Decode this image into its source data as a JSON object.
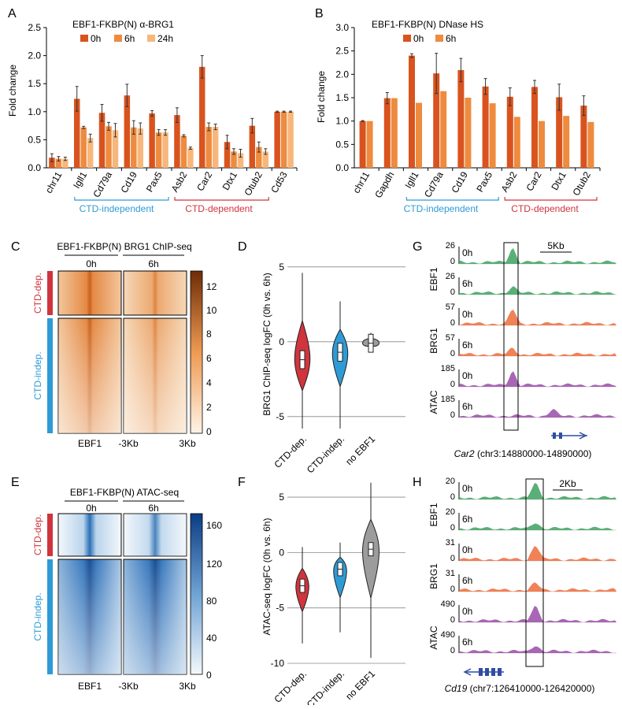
{
  "panels": {
    "A": {
      "letter": "A",
      "title": "EBF1-FKBP(N) α-BRG1",
      "ylabel": "Fold change",
      "legend": [
        "0h",
        "6h",
        "24h"
      ],
      "groups": [
        "CTD-independent",
        "CTD-dependent"
      ]
    },
    "B": {
      "letter": "B",
      "title": "EBF1-FKBP(N) DNase HS",
      "ylabel": "Fold change",
      "legend": [
        "0h",
        "6h"
      ],
      "groups": [
        "CTD-independent",
        "CTD-dependent"
      ]
    },
    "C": {
      "letter": "C",
      "title": "EBF1-FKBP(N) BRG1 ChIP-seq",
      "cols": [
        "0h",
        "6h"
      ],
      "rows": [
        "CTD-dep.",
        "CTD-indep."
      ],
      "xlabels": [
        "EBF1",
        "-3Kb",
        "3Kb"
      ],
      "scale": [
        "12",
        "10",
        "8",
        "6",
        "4",
        "2",
        "0"
      ]
    },
    "D": {
      "letter": "D",
      "ylabel": "BRG1 ChIP-seq logFC (0h vs. 6h)"
    },
    "E": {
      "letter": "E",
      "title": "EBF1-FKBP(N) ATAC-seq",
      "cols": [
        "0h",
        "6h"
      ],
      "rows": [
        "CTD-dep.",
        "CTD-indep."
      ],
      "xlabels": [
        "EBF1",
        "-3Kb",
        "3Kb"
      ],
      "scale": [
        "160",
        "120",
        "80",
        "40",
        "0"
      ]
    },
    "F": {
      "letter": "F",
      "ylabel": "ATAC-seq logFC (0h vs. 6h)"
    },
    "G": {
      "letter": "G",
      "scalebar": "5Kb",
      "gene": "Car2",
      "coords": "(chr3:14880000-14890000)",
      "tracks": [
        {
          "factor": "EBF1",
          "max": "26",
          "time": "0h"
        },
        {
          "factor": "",
          "max": "26",
          "time": "6h"
        },
        {
          "factor": "BRG1",
          "max": "57",
          "time": "0h"
        },
        {
          "factor": "",
          "max": "57",
          "time": "6h"
        },
        {
          "factor": "ATAC",
          "max": "185",
          "time": "0h"
        },
        {
          "factor": "",
          "max": "185",
          "time": "6h"
        }
      ]
    },
    "H": {
      "letter": "H",
      "scalebar": "2Kb",
      "gene": "Cd19",
      "coords": "(chr7:126410000-126420000)",
      "tracks": [
        {
          "factor": "EBF1",
          "max": "20",
          "time": "0h"
        },
        {
          "factor": "",
          "max": "20",
          "time": "6h"
        },
        {
          "factor": "BRG1",
          "max": "31",
          "time": "0h"
        },
        {
          "factor": "",
          "max": "31",
          "time": "6h"
        },
        {
          "factor": "ATAC",
          "max": "490",
          "time": "0h"
        },
        {
          "factor": "",
          "max": "490",
          "time": "6h"
        }
      ]
    }
  },
  "colors": {
    "c0h": "#D9531E",
    "c6h": "#EE8B3E",
    "c24h": "#F7B77C",
    "blue": "#2E9BD6",
    "red": "#D0343D",
    "green": "#3DA160",
    "orange": "#EF6B3A",
    "purple": "#9A4BA8"
  },
  "chart_data": [
    {
      "type": "bar",
      "panel": "A",
      "title": "EBF1-FKBP(N) α-BRG1",
      "ylabel": "Fold change",
      "ylim": [
        0,
        2.5
      ],
      "yticks": [
        "0.0",
        "0.5",
        "1.0",
        "1.5",
        "2.0",
        "2.5"
      ],
      "categories": [
        "chr11",
        "Igll1",
        "Cd79a",
        "Cd19",
        "Pax5",
        "Asb2",
        "Car2",
        "Dtx1",
        "Otub2",
        "Cd53"
      ],
      "series": [
        {
          "name": "0h",
          "values": [
            0.18,
            1.23,
            0.98,
            1.29,
            0.97,
            0.94,
            1.8,
            0.46,
            0.75,
            1.0
          ],
          "errors": [
            0.07,
            0.22,
            0.15,
            0.2,
            0.05,
            0.13,
            0.2,
            0.12,
            0.13,
            0.01
          ]
        },
        {
          "name": "6h",
          "values": [
            0.16,
            0.72,
            0.74,
            0.72,
            0.63,
            0.57,
            0.73,
            0.29,
            0.37,
            1.0
          ],
          "errors": [
            0.04,
            0.02,
            0.07,
            0.12,
            0.05,
            0.02,
            0.07,
            0.05,
            0.09,
            0.01
          ]
        },
        {
          "name": "24h",
          "values": [
            0.16,
            0.53,
            0.67,
            0.7,
            0.63,
            0.35,
            0.73,
            0.26,
            0.29,
            1.0
          ],
          "errors": [
            0.03,
            0.07,
            0.12,
            0.1,
            0.05,
            0.02,
            0.05,
            0.07,
            0.05,
            0.01
          ]
        }
      ]
    },
    {
      "type": "bar",
      "panel": "B",
      "title": "EBF1-FKBP(N) DNase HS",
      "ylabel": "Fold change",
      "ylim": [
        0,
        3.0
      ],
      "yticks": [
        "0.0",
        "0.5",
        "1.0",
        "1.5",
        "2.0",
        "2.5",
        "3.0"
      ],
      "categories": [
        "chr11",
        "Gapdh",
        "Igll1",
        "Cd79a",
        "Cd19",
        "Pax5",
        "Asb2",
        "Car2",
        "Dtx1",
        "Otub2"
      ],
      "series": [
        {
          "name": "0h",
          "values": [
            1.0,
            1.49,
            2.4,
            2.02,
            2.09,
            1.74,
            1.52,
            1.73,
            1.51,
            1.33
          ],
          "errors": [
            0.01,
            0.12,
            0.04,
            0.43,
            0.25,
            0.17,
            0.19,
            0.14,
            0.28,
            0.21
          ]
        },
        {
          "name": "6h",
          "values": [
            1.0,
            1.49,
            1.39,
            1.64,
            1.5,
            1.38,
            1.09,
            1.0,
            1.11,
            0.98
          ]
        }
      ]
    },
    {
      "type": "violin",
      "panel": "D",
      "ylabel": "BRG1 ChIP-seq logFC (0h vs. 6h)",
      "ylim": [
        -5.8,
        6.2
      ],
      "yticks": [
        "5",
        "0",
        "-5"
      ],
      "categories": [
        "CTD-dep.",
        "CTD-indep.",
        "no EBF1"
      ],
      "medians": [
        -1.2,
        -0.7,
        -0.1
      ]
    },
    {
      "type": "violin",
      "panel": "F",
      "ylabel": "ATAC-seq logFC (0h vs. 6h)",
      "ylim": [
        -10,
        6
      ],
      "yticks": [
        "5",
        "0",
        "-5",
        "-10"
      ],
      "categories": [
        "CTD-dep.",
        "CTD-indep.",
        "no EBF1"
      ],
      "medians": [
        -3.0,
        -1.5,
        0.3
      ]
    }
  ]
}
